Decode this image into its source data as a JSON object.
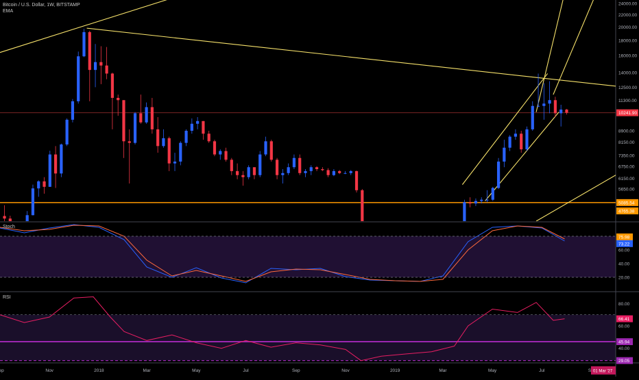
{
  "header": {
    "symbol_title": "Bitcoin / U.S. Dollar, 1W, BITSTAMP",
    "indicator_label": "EMA"
  },
  "panes": {
    "stoch_title": "Stoch",
    "rsi_title": "RSI"
  },
  "colors": {
    "background": "#000000",
    "bull": "#2962ff",
    "bear": "#f23645",
    "trendline": "#f7e26b",
    "support": "#ff9800",
    "stoch_k": "#2962ff",
    "stoch_d": "#ff6a3d",
    "rsi_line": "#e91e63",
    "rsi_band": "#9c27b0",
    "pane_fill": "#241238"
  },
  "chart_data": [
    {
      "type": "candlestick",
      "scale": "log",
      "x_tick_labels": [
        "Sep",
        "Nov",
        "2018",
        "Mar",
        "May",
        "Jul",
        "Sep",
        "Nov",
        "2019",
        "Mar",
        "May",
        "Jul",
        "Sep"
      ],
      "y_tick_labels": [
        "24000.00",
        "22000.00",
        "20000.00",
        "18000.00",
        "16000.00",
        "14000.00",
        "12500.00",
        "11300.00",
        "8900.00",
        "8150.00",
        "7350.00",
        "6750.00",
        "6150.00",
        "5650.00"
      ],
      "y_ticks": [
        24000,
        22000,
        20000,
        18000,
        16000,
        14000,
        12500,
        11300,
        8900,
        8150,
        7350,
        6750,
        6150,
        5650
      ],
      "ylim": [
        4400,
        24400
      ],
      "x_range": [
        "2017-09-01",
        "2019-09-30"
      ],
      "price_badges": [
        {
          "label": "10241.90",
          "value": 10241.9,
          "color": "#f23645"
        },
        {
          "label": "5085.54",
          "value": 5085.54,
          "color": "#ff9800"
        },
        {
          "label": "4765.38",
          "value": 4765.38,
          "color": "#ff9800"
        }
      ],
      "horizontal_levels": [
        10241.9,
        5085.54
      ],
      "date_badge": "01 Mar '27",
      "candles": [
        {
          "date": "2017-09-04",
          "o": 4580,
          "h": 4980,
          "l": 4350,
          "c": 4490
        },
        {
          "date": "2017-09-11",
          "o": 4490,
          "h": 4590,
          "l": 3000,
          "c": 3800
        },
        {
          "date": "2017-09-18",
          "o": 3800,
          "h": 4100,
          "l": 3550,
          "c": 3650
        },
        {
          "date": "2017-09-25",
          "o": 3650,
          "h": 4400,
          "l": 3620,
          "c": 4370
        },
        {
          "date": "2017-10-02",
          "o": 4370,
          "h": 4760,
          "l": 4300,
          "c": 4610
        },
        {
          "date": "2017-10-09",
          "o": 4610,
          "h": 5850,
          "l": 4600,
          "c": 5680
        },
        {
          "date": "2017-10-16",
          "o": 5680,
          "h": 6050,
          "l": 5320,
          "c": 6000
        },
        {
          "date": "2017-10-23",
          "o": 6000,
          "h": 6200,
          "l": 5450,
          "c": 5750
        },
        {
          "date": "2017-10-30",
          "o": 5750,
          "h": 7620,
          "l": 5750,
          "c": 7400
        },
        {
          "date": "2017-11-06",
          "o": 7400,
          "h": 7900,
          "l": 5700,
          "c": 6380
        },
        {
          "date": "2017-11-13",
          "o": 6380,
          "h": 8050,
          "l": 6200,
          "c": 8000
        },
        {
          "date": "2017-11-20",
          "o": 8000,
          "h": 9800,
          "l": 7900,
          "c": 9700
        },
        {
          "date": "2017-11-27",
          "o": 9700,
          "h": 11400,
          "l": 9500,
          "c": 11200
        },
        {
          "date": "2017-12-04",
          "o": 11200,
          "h": 16500,
          "l": 11000,
          "c": 15900
        },
        {
          "date": "2017-12-11",
          "o": 15900,
          "h": 19700,
          "l": 15800,
          "c": 19200
        },
        {
          "date": "2017-12-18",
          "o": 19200,
          "h": 19400,
          "l": 11200,
          "c": 14300
        },
        {
          "date": "2017-12-25",
          "o": 14300,
          "h": 17500,
          "l": 12500,
          "c": 15200
        },
        {
          "date": "2018-01-01",
          "o": 15200,
          "h": 17200,
          "l": 12800,
          "c": 14800
        },
        {
          "date": "2018-01-08",
          "o": 14800,
          "h": 17100,
          "l": 13300,
          "c": 13900
        },
        {
          "date": "2018-01-15",
          "o": 13900,
          "h": 14000,
          "l": 9000,
          "c": 11500
        },
        {
          "date": "2018-01-22",
          "o": 11500,
          "h": 11800,
          "l": 10000,
          "c": 11300
        },
        {
          "date": "2018-01-29",
          "o": 11300,
          "h": 11300,
          "l": 7200,
          "c": 8200
        },
        {
          "date": "2018-02-05",
          "o": 8200,
          "h": 9000,
          "l": 5900,
          "c": 8100
        },
        {
          "date": "2018-02-12",
          "o": 8100,
          "h": 10300,
          "l": 8000,
          "c": 10200
        },
        {
          "date": "2018-02-19",
          "o": 10200,
          "h": 11800,
          "l": 9400,
          "c": 9500
        },
        {
          "date": "2018-02-26",
          "o": 9500,
          "h": 11100,
          "l": 9400,
          "c": 10700
        },
        {
          "date": "2018-03-05",
          "o": 10700,
          "h": 11500,
          "l": 8700,
          "c": 9000
        },
        {
          "date": "2018-03-12",
          "o": 9000,
          "h": 9900,
          "l": 7500,
          "c": 7900
        },
        {
          "date": "2018-03-19",
          "o": 7900,
          "h": 9000,
          "l": 7800,
          "c": 8400
        },
        {
          "date": "2018-03-26",
          "o": 8400,
          "h": 8500,
          "l": 6500,
          "c": 6900
        },
        {
          "date": "2018-04-02",
          "o": 6900,
          "h": 7500,
          "l": 6500,
          "c": 7000
        },
        {
          "date": "2018-04-09",
          "o": 7000,
          "h": 8200,
          "l": 6800,
          "c": 8100
        },
        {
          "date": "2018-04-16",
          "o": 8100,
          "h": 9000,
          "l": 7900,
          "c": 8900
        },
        {
          "date": "2018-04-23",
          "o": 8900,
          "h": 9800,
          "l": 8700,
          "c": 9400
        },
        {
          "date": "2018-04-30",
          "o": 9400,
          "h": 9900,
          "l": 9000,
          "c": 9600
        },
        {
          "date": "2018-05-07",
          "o": 9600,
          "h": 9600,
          "l": 8300,
          "c": 8700
        },
        {
          "date": "2018-05-14",
          "o": 8700,
          "h": 8900,
          "l": 8100,
          "c": 8200
        },
        {
          "date": "2018-05-21",
          "o": 8200,
          "h": 8300,
          "l": 7300,
          "c": 7400
        },
        {
          "date": "2018-05-28",
          "o": 7400,
          "h": 7700,
          "l": 7100,
          "c": 7600
        },
        {
          "date": "2018-06-04",
          "o": 7600,
          "h": 7800,
          "l": 7000,
          "c": 7100
        },
        {
          "date": "2018-06-11",
          "o": 7100,
          "h": 7200,
          "l": 6300,
          "c": 6500
        },
        {
          "date": "2018-06-18",
          "o": 6500,
          "h": 6900,
          "l": 6100,
          "c": 6300
        },
        {
          "date": "2018-06-25",
          "o": 6300,
          "h": 6500,
          "l": 5800,
          "c": 6200
        },
        {
          "date": "2018-07-02",
          "o": 6200,
          "h": 6800,
          "l": 6100,
          "c": 6700
        },
        {
          "date": "2018-07-09",
          "o": 6700,
          "h": 6700,
          "l": 6100,
          "c": 6300
        },
        {
          "date": "2018-07-16",
          "o": 6300,
          "h": 7600,
          "l": 6200,
          "c": 7400
        },
        {
          "date": "2018-07-23",
          "o": 7400,
          "h": 8500,
          "l": 7300,
          "c": 8200
        },
        {
          "date": "2018-07-30",
          "o": 8200,
          "h": 8300,
          "l": 7000,
          "c": 7100
        },
        {
          "date": "2018-08-06",
          "o": 7100,
          "h": 7200,
          "l": 6100,
          "c": 6300
        },
        {
          "date": "2018-08-13",
          "o": 6300,
          "h": 6600,
          "l": 5900,
          "c": 6400
        },
        {
          "date": "2018-08-20",
          "o": 6400,
          "h": 6900,
          "l": 6300,
          "c": 6700
        },
        {
          "date": "2018-08-27",
          "o": 6700,
          "h": 7400,
          "l": 6600,
          "c": 7200
        },
        {
          "date": "2018-09-03",
          "o": 7200,
          "h": 7400,
          "l": 6300,
          "c": 6400
        },
        {
          "date": "2018-09-10",
          "o": 6400,
          "h": 6600,
          "l": 6200,
          "c": 6500
        },
        {
          "date": "2018-09-17",
          "o": 6500,
          "h": 6800,
          "l": 6300,
          "c": 6700
        },
        {
          "date": "2018-09-24",
          "o": 6700,
          "h": 6750,
          "l": 6500,
          "c": 6600
        },
        {
          "date": "2018-10-01",
          "o": 6600,
          "h": 6700,
          "l": 6500,
          "c": 6550
        },
        {
          "date": "2018-10-08",
          "o": 6550,
          "h": 6650,
          "l": 6200,
          "c": 6300
        },
        {
          "date": "2018-10-15",
          "o": 6300,
          "h": 6600,
          "l": 6250,
          "c": 6500
        },
        {
          "date": "2018-10-22",
          "o": 6500,
          "h": 6550,
          "l": 6350,
          "c": 6400
        },
        {
          "date": "2018-10-29",
          "o": 6400,
          "h": 6500,
          "l": 6350,
          "c": 6400
        },
        {
          "date": "2018-11-05",
          "o": 6400,
          "h": 6550,
          "l": 6300,
          "c": 6500
        },
        {
          "date": "2018-11-12",
          "o": 6500,
          "h": 6520,
          "l": 5500,
          "c": 5600
        },
        {
          "date": "2018-11-19",
          "o": 5600,
          "h": 5650,
          "l": 3700,
          "c": 4000
        }
      ],
      "candles_2019": [
        {
          "date": "2019-03-25",
          "o": 4000,
          "h": 5200,
          "l": 3950,
          "c": 5100
        },
        {
          "date": "2019-04-01",
          "o": 5100,
          "h": 5300,
          "l": 4900,
          "c": 5050
        },
        {
          "date": "2019-04-08",
          "o": 5050,
          "h": 5250,
          "l": 4950,
          "c": 5150
        },
        {
          "date": "2019-04-15",
          "o": 5150,
          "h": 5300,
          "l": 5050,
          "c": 5200
        },
        {
          "date": "2019-04-22",
          "o": 5200,
          "h": 5600,
          "l": 5100,
          "c": 5200
        },
        {
          "date": "2019-04-29",
          "o": 5200,
          "h": 5750,
          "l": 5150,
          "c": 5700
        },
        {
          "date": "2019-05-06",
          "o": 5700,
          "h": 7200,
          "l": 5650,
          "c": 7000
        },
        {
          "date": "2019-05-13",
          "o": 7000,
          "h": 8300,
          "l": 6700,
          "c": 7800
        },
        {
          "date": "2019-05-20",
          "o": 7800,
          "h": 8600,
          "l": 7600,
          "c": 8500
        },
        {
          "date": "2019-05-27",
          "o": 8500,
          "h": 9000,
          "l": 8300,
          "c": 8700
        },
        {
          "date": "2019-06-03",
          "o": 8700,
          "h": 8900,
          "l": 7500,
          "c": 7700
        },
        {
          "date": "2019-06-10",
          "o": 7700,
          "h": 9200,
          "l": 7600,
          "c": 9000
        },
        {
          "date": "2019-06-17",
          "o": 9000,
          "h": 11200,
          "l": 8900,
          "c": 10800
        },
        {
          "date": "2019-06-24",
          "o": 10800,
          "h": 13900,
          "l": 10700,
          "c": 10800
        },
        {
          "date": "2019-07-01",
          "o": 10800,
          "h": 12900,
          "l": 9700,
          "c": 11000
        },
        {
          "date": "2019-07-08",
          "o": 11000,
          "h": 13100,
          "l": 10200,
          "c": 11300
        },
        {
          "date": "2019-07-15",
          "o": 11300,
          "h": 11600,
          "l": 9900,
          "c": 10200
        },
        {
          "date": "2019-07-22",
          "o": 10200,
          "h": 10900,
          "l": 9200,
          "c": 10500
        },
        {
          "date": "2019-07-29",
          "o": 10500,
          "h": 10550,
          "l": 10100,
          "c": 10242
        }
      ],
      "trendlines": [
        {
          "from": {
            "date": "2017-08-01",
            "value": 15400
          },
          "to": {
            "date": "2018-04-20",
            "value": 26000
          }
        },
        {
          "from": {
            "date": "2017-12-17",
            "value": 19800
          },
          "to": {
            "date": "2019-09-30",
            "value": 12600
          }
        },
        {
          "from": {
            "date": "2019-03-25",
            "value": 5850
          },
          "to": {
            "date": "2019-07-08",
            "value": 13900
          }
        },
        {
          "from": {
            "date": "2019-04-22",
            "value": 5150
          },
          "to": {
            "date": "2019-07-22",
            "value": 10300
          }
        },
        {
          "from": {
            "date": "2019-06-24",
            "value": 10300
          },
          "to": {
            "date": "2019-07-29",
            "value": 26000
          }
        },
        {
          "from": {
            "date": "2019-07-15",
            "value": 11800
          },
          "to": {
            "date": "2019-09-06",
            "value": 26000
          }
        },
        {
          "from": {
            "date": "2019-06-24",
            "value": 4400
          },
          "to": {
            "date": "2019-09-30",
            "value": 6300
          }
        }
      ]
    },
    {
      "type": "line",
      "title": "Stoch",
      "y_tick_labels": [
        "60.00",
        "40.00",
        "20.00"
      ],
      "y_ticks": [
        60,
        40,
        20
      ],
      "ylim": [
        0,
        100
      ],
      "bands": [
        80,
        20
      ],
      "last_value_labels": [
        {
          "label": "75.98",
          "value": 75.98,
          "color": "#ff9800"
        },
        {
          "label": "73.22",
          "value": 73.22,
          "color": "#2962ff"
        }
      ],
      "series": [
        {
          "name": "%K",
          "x": [
            "2017-09-01",
            "2017-10-01",
            "2017-11-01",
            "2017-12-01",
            "2018-01-01",
            "2018-02-01",
            "2018-03-01",
            "2018-04-01",
            "2018-05-01",
            "2018-06-01",
            "2018-07-01",
            "2018-08-01",
            "2018-09-01",
            "2018-10-01",
            "2018-11-01",
            "2018-12-01",
            "2019-01-01",
            "2019-02-01",
            "2019-03-01",
            "2019-04-01",
            "2019-05-01",
            "2019-06-01",
            "2019-07-01",
            "2019-07-29"
          ],
          "values": [
            92,
            85,
            92,
            97,
            93,
            75,
            35,
            20,
            34,
            19,
            12,
            33,
            31,
            33,
            21,
            16,
            15,
            14,
            22,
            72,
            93,
            95,
            92,
            73
          ]
        },
        {
          "name": "%D",
          "x": [
            "2017-09-01",
            "2017-10-01",
            "2017-11-01",
            "2017-12-01",
            "2018-01-01",
            "2018-02-01",
            "2018-03-01",
            "2018-04-01",
            "2018-05-01",
            "2018-06-01",
            "2018-07-01",
            "2018-08-01",
            "2018-09-01",
            "2018-10-01",
            "2018-11-01",
            "2018-12-01",
            "2019-01-01",
            "2019-02-01",
            "2019-03-01",
            "2019-04-01",
            "2019-05-01",
            "2019-06-01",
            "2019-07-01",
            "2019-07-29"
          ],
          "values": [
            93,
            88,
            90,
            96,
            95,
            80,
            45,
            22,
            30,
            22,
            14,
            28,
            32,
            31,
            24,
            17,
            15,
            14,
            17,
            60,
            88,
            95,
            93,
            76
          ]
        }
      ]
    },
    {
      "type": "line",
      "title": "RSI",
      "y_tick_labels": [
        "80.00",
        "60.00",
        "40.00"
      ],
      "y_ticks": [
        80,
        60,
        40
      ],
      "ylim": [
        27,
        90
      ],
      "bands": [
        70,
        45.94,
        29.05
      ],
      "last_value_labels": [
        {
          "label": "66.41",
          "value": 66.41,
          "color": "#e91e63"
        },
        {
          "label": "45.94",
          "value": 45.94,
          "color": "#9c27b0"
        },
        {
          "label": "29.05",
          "value": 29.05,
          "color": "#9c27b0"
        }
      ],
      "series": [
        {
          "name": "RSI",
          "x": [
            "2017-09-01",
            "2017-10-01",
            "2017-11-01",
            "2017-12-01",
            "2017-12-25",
            "2018-01-15",
            "2018-02-01",
            "2018-03-01",
            "2018-04-01",
            "2018-05-01",
            "2018-06-01",
            "2018-07-01",
            "2018-08-01",
            "2018-09-01",
            "2018-10-01",
            "2018-11-01",
            "2018-11-20",
            "2018-12-15",
            "2019-01-15",
            "2019-02-15",
            "2019-03-15",
            "2019-04-01",
            "2019-05-01",
            "2019-06-01",
            "2019-06-24",
            "2019-07-15",
            "2019-07-29"
          ],
          "values": [
            70,
            63,
            68,
            85,
            86,
            68,
            55,
            47,
            52,
            45,
            40,
            47,
            41,
            45,
            43,
            39,
            29,
            33,
            35,
            37,
            42,
            60,
            75,
            72,
            81,
            65,
            66.41
          ]
        }
      ]
    }
  ]
}
